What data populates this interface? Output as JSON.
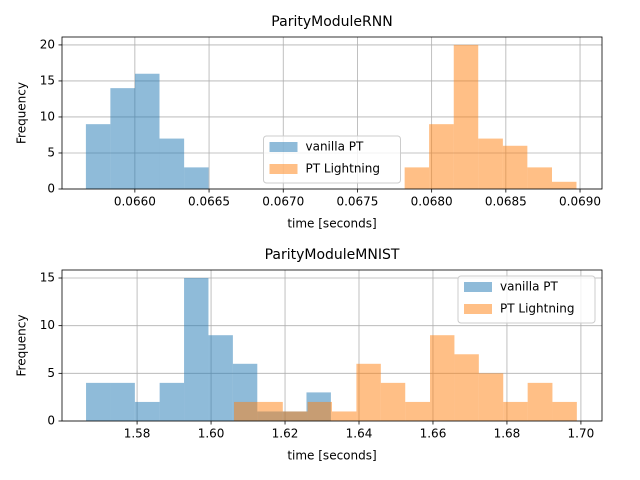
{
  "chart_data": [
    {
      "type": "histogram",
      "title": "ParityModuleRNN",
      "x_label": "time [seconds]",
      "y_label": "Frequency",
      "xlim": [
        0.065509,
        0.069148
      ],
      "ylim": [
        0,
        21.1
      ],
      "xticks": [
        {
          "value": 0.066,
          "label": "0.0660"
        },
        0.0665,
        {
          "value": 0.067,
          "label": "0.0670"
        },
        0.0675,
        {
          "value": 0.068,
          "label": "0.0680"
        },
        0.0685,
        {
          "value": 0.069,
          "label": "0.0690"
        }
      ],
      "yticks": [
        0,
        5,
        10,
        15,
        20
      ],
      "grid": true,
      "legend": "lower center",
      "series": [
        {
          "name": "vanilla PT",
          "color": "#1f77b4",
          "opacity": 0.5,
          "bins": [
            0.06567,
            0.065835,
            0.066001,
            0.066166,
            0.066332,
            0.066497
          ],
          "values": [
            9,
            14,
            16,
            7,
            3
          ]
        },
        {
          "name": "PT Lightning",
          "color": "#ff7f0e",
          "opacity": 0.5,
          "bins": [
            0.067818,
            0.067983,
            0.068149,
            0.068314,
            0.06848,
            0.068645,
            0.068811,
            0.068976
          ],
          "values": [
            3,
            9,
            20,
            7,
            6,
            3,
            1
          ]
        }
      ]
    },
    {
      "type": "histogram",
      "title": "ParityModuleMNIST",
      "x_label": "time [seconds]",
      "y_label": "Frequency",
      "xlim": [
        1.5597,
        1.7057
      ],
      "ylim": [
        0,
        15.84
      ],
      "xticks": [
        1.58,
        {
          "value": 1.6,
          "label": "1.60"
        },
        1.62,
        1.64,
        1.66,
        1.68,
        {
          "value": 1.7,
          "label": "1.70"
        }
      ],
      "yticks": [
        0,
        5,
        10,
        15
      ],
      "grid": true,
      "legend": "upper right",
      "series": [
        {
          "name": "vanilla PT",
          "color": "#1f77b4",
          "opacity": 0.5,
          "bins": [
            1.5662,
            1.5728,
            1.5794,
            1.5861,
            1.5927,
            1.5993,
            1.6059,
            1.6125,
            1.6192,
            1.6258,
            1.6324
          ],
          "values": [
            4,
            4,
            2,
            4,
            15,
            9,
            6,
            1,
            1,
            3
          ]
        },
        {
          "name": "PT Lightning",
          "color": "#ff7f0e",
          "opacity": 0.5,
          "bins": [
            1.6062,
            1.6128,
            1.6194,
            1.6261,
            1.6327,
            1.6393,
            1.6459,
            1.6525,
            1.6592,
            1.6658,
            1.6724,
            1.679,
            1.6856,
            1.6923,
            1.6989
          ],
          "values": [
            2,
            2,
            1,
            2,
            1,
            6,
            4,
            2,
            9,
            7,
            5,
            2,
            4,
            2
          ]
        }
      ]
    }
  ]
}
